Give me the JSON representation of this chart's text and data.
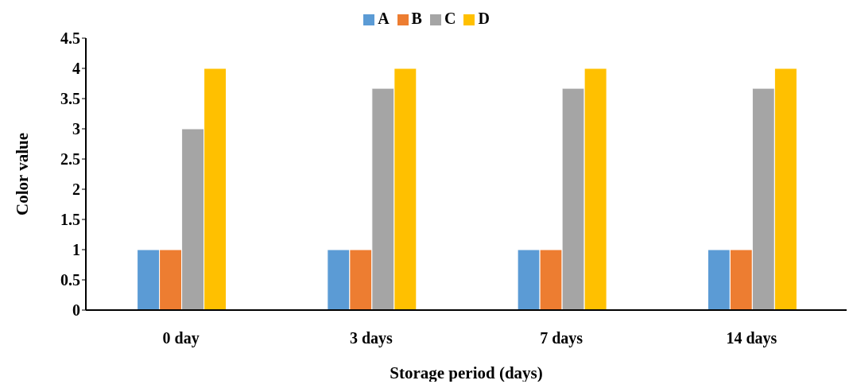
{
  "chart_data": {
    "type": "bar",
    "xlabel": "Storage period (days)",
    "ylabel": "Color value",
    "categories": [
      "0 day",
      "3 days",
      "7 days",
      "14 days"
    ],
    "series": [
      {
        "name": "A",
        "color": "#5b9bd5",
        "values": [
          1,
          1,
          1,
          1
        ]
      },
      {
        "name": "B",
        "color": "#ed7d31",
        "values": [
          1,
          1,
          1,
          1
        ]
      },
      {
        "name": "C",
        "color": "#a5a5a5",
        "values": [
          3,
          3.67,
          3.67,
          3.67
        ]
      },
      {
        "name": "D",
        "color": "#ffc000",
        "values": [
          4,
          4,
          4,
          4
        ]
      }
    ],
    "ylim": [
      0,
      4.5
    ],
    "yticks": [
      0,
      0.5,
      1,
      1.5,
      2,
      2.5,
      3,
      3.5,
      4,
      4.5
    ],
    "grid": false,
    "legend": "top"
  }
}
